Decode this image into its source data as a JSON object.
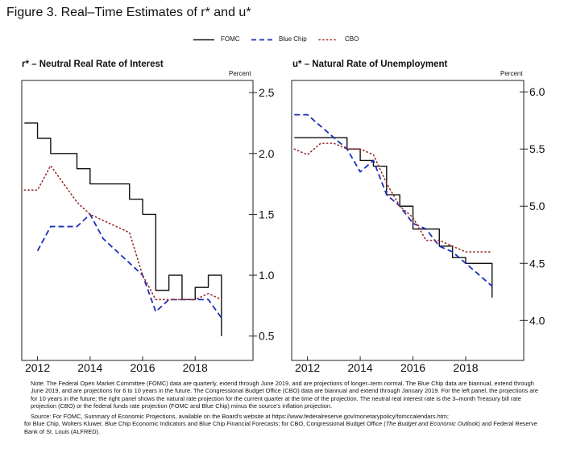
{
  "figure_title": "Figure 3.  Real–Time Estimates of r* and u*",
  "legend": [
    {
      "label": "FOMC",
      "style": "solid",
      "color": "#111111"
    },
    {
      "label": "Blue Chip",
      "style": "dashed",
      "color": "#1a2fb5"
    },
    {
      "label": "CBO",
      "style": "dotted",
      "color": "#9b2a2a"
    }
  ],
  "notes": {
    "note": "Note: The Federal Open Market Committee (FOMC) data are quarterly, extend through June 2019, and are projections of longer–term normal. The Blue Chip data are biannual, extend through June 2019, and are projections for 6 to 10 years in the future.  The Congressional Budget Office (CBO) data are biannual and extend through January 2019. For the left panel, the projections are for 10 years in the future; the right panel shows the natural rate projection for the current quarter at the time of the projection.  The neutral real interest rate is the 3–month Treasury bill rate projection (CBO) or the federal funds rate projection (FOMC and Blue Chip) minus the source's inflation projection.",
    "source_line1": "Source:  For FOMC, Summary of Economic Projections, available on the Board's website at https://www.federalreserve.gov/monetarypolicy/fomccalendars.htm;",
    "source_line2_pre": "for Blue Chip, Wolters Kluwer, Blue Chip Economic Indicators and Blue Chip Financial Forecasts; for CBO, Congressional Budget Office (",
    "source_italic": "The Budget and Economic Outlook",
    "source_line2_post": ") and Federal Reserve Bank of St. Louis (ALFRED)."
  },
  "chart_data": [
    {
      "type": "line",
      "title": "r* – Neutral Real Rate of Interest",
      "ylabel": "Percent",
      "xlim": [
        2011.4,
        2020.2
      ],
      "ylim": [
        0.3,
        2.6
      ],
      "yticks": [
        0.5,
        1.0,
        1.5,
        2.0,
        2.5
      ],
      "ytick_labels": [
        "0.5",
        "1.0",
        "1.5",
        "2.0",
        "2.5"
      ],
      "xticks": [
        2012,
        2014,
        2016,
        2018
      ],
      "xtick_labels": [
        "2012",
        "2014",
        "2016",
        "2018"
      ],
      "grid": false,
      "series": [
        {
          "name": "FOMC",
          "style": "step",
          "x": [
            2011.5,
            2012.0,
            2012.5,
            2013.0,
            2013.5,
            2014.0,
            2014.5,
            2015.0,
            2015.5,
            2016.0,
            2016.5,
            2017.0,
            2017.5,
            2018.0,
            2018.5,
            2019.0
          ],
          "y": [
            2.25,
            2.125,
            2.0,
            2.0,
            1.875,
            1.75,
            1.75,
            1.75,
            1.625,
            1.5,
            0.875,
            1.0,
            0.8,
            0.9,
            1.0,
            0.5
          ]
        },
        {
          "name": "Blue Chip",
          "style": "line",
          "x": [
            2012.0,
            2012.5,
            2013.0,
            2013.5,
            2014.0,
            2014.5,
            2015.0,
            2015.5,
            2016.0,
            2016.5,
            2017.0,
            2017.5,
            2018.0,
            2018.5,
            2019.0
          ],
          "y": [
            1.2,
            1.4,
            1.4,
            1.4,
            1.5,
            1.3,
            1.2,
            1.1,
            1.0,
            0.7,
            0.8,
            0.8,
            0.8,
            0.8,
            0.65
          ]
        },
        {
          "name": "CBO",
          "style": "line",
          "x": [
            2011.5,
            2012.0,
            2012.5,
            2013.0,
            2013.5,
            2014.0,
            2014.5,
            2015.0,
            2015.5,
            2016.0,
            2016.5,
            2017.0,
            2017.5,
            2018.0,
            2018.5,
            2019.0
          ],
          "y": [
            1.7,
            1.7,
            1.9,
            1.75,
            1.6,
            1.5,
            1.45,
            1.4,
            1.35,
            1.0,
            0.8,
            0.8,
            0.8,
            0.8,
            0.85,
            0.8
          ]
        }
      ]
    },
    {
      "type": "line",
      "title": "u* – Natural Rate of Unemployment",
      "ylabel": "Percent",
      "xlim": [
        2011.4,
        2020.2
      ],
      "ylim": [
        3.65,
        6.1
      ],
      "yticks": [
        4.0,
        4.5,
        5.0,
        5.5,
        6.0
      ],
      "ytick_labels": [
        "4.0",
        "4.5",
        "5.0",
        "5.5",
        "6.0"
      ],
      "xticks": [
        2012,
        2014,
        2016,
        2018
      ],
      "xtick_labels": [
        "2012",
        "2014",
        "2016",
        "2018"
      ],
      "grid": false,
      "series": [
        {
          "name": "FOMC",
          "style": "step",
          "x": [
            2011.5,
            2012.0,
            2012.5,
            2013.0,
            2013.5,
            2014.0,
            2014.5,
            2015.0,
            2015.5,
            2016.0,
            2016.5,
            2017.0,
            2017.5,
            2018.0,
            2018.5,
            2019.0
          ],
          "y": [
            5.6,
            5.6,
            5.6,
            5.6,
            5.5,
            5.4,
            5.35,
            5.1,
            5.0,
            4.8,
            4.8,
            4.65,
            4.55,
            4.5,
            4.5,
            4.2
          ]
        },
        {
          "name": "Blue Chip",
          "style": "line",
          "x": [
            2011.5,
            2012.0,
            2012.5,
            2013.0,
            2013.5,
            2014.0,
            2014.5,
            2015.0,
            2015.5,
            2016.0,
            2016.5,
            2017.0,
            2017.5,
            2018.0,
            2018.5,
            2019.0
          ],
          "y": [
            5.8,
            5.8,
            5.7,
            5.6,
            5.5,
            5.3,
            5.4,
            5.1,
            5.0,
            4.85,
            4.8,
            4.65,
            4.6,
            4.5,
            4.4,
            4.3
          ]
        },
        {
          "name": "CBO",
          "style": "line",
          "x": [
            2011.5,
            2012.0,
            2012.5,
            2013.0,
            2013.5,
            2014.0,
            2014.5,
            2015.0,
            2015.5,
            2016.0,
            2016.5,
            2017.0,
            2017.5,
            2018.0,
            2018.5,
            2019.0
          ],
          "y": [
            5.5,
            5.45,
            5.55,
            5.55,
            5.5,
            5.5,
            5.45,
            5.2,
            5.0,
            4.9,
            4.7,
            4.7,
            4.65,
            4.6,
            4.6,
            4.6
          ]
        }
      ]
    }
  ]
}
